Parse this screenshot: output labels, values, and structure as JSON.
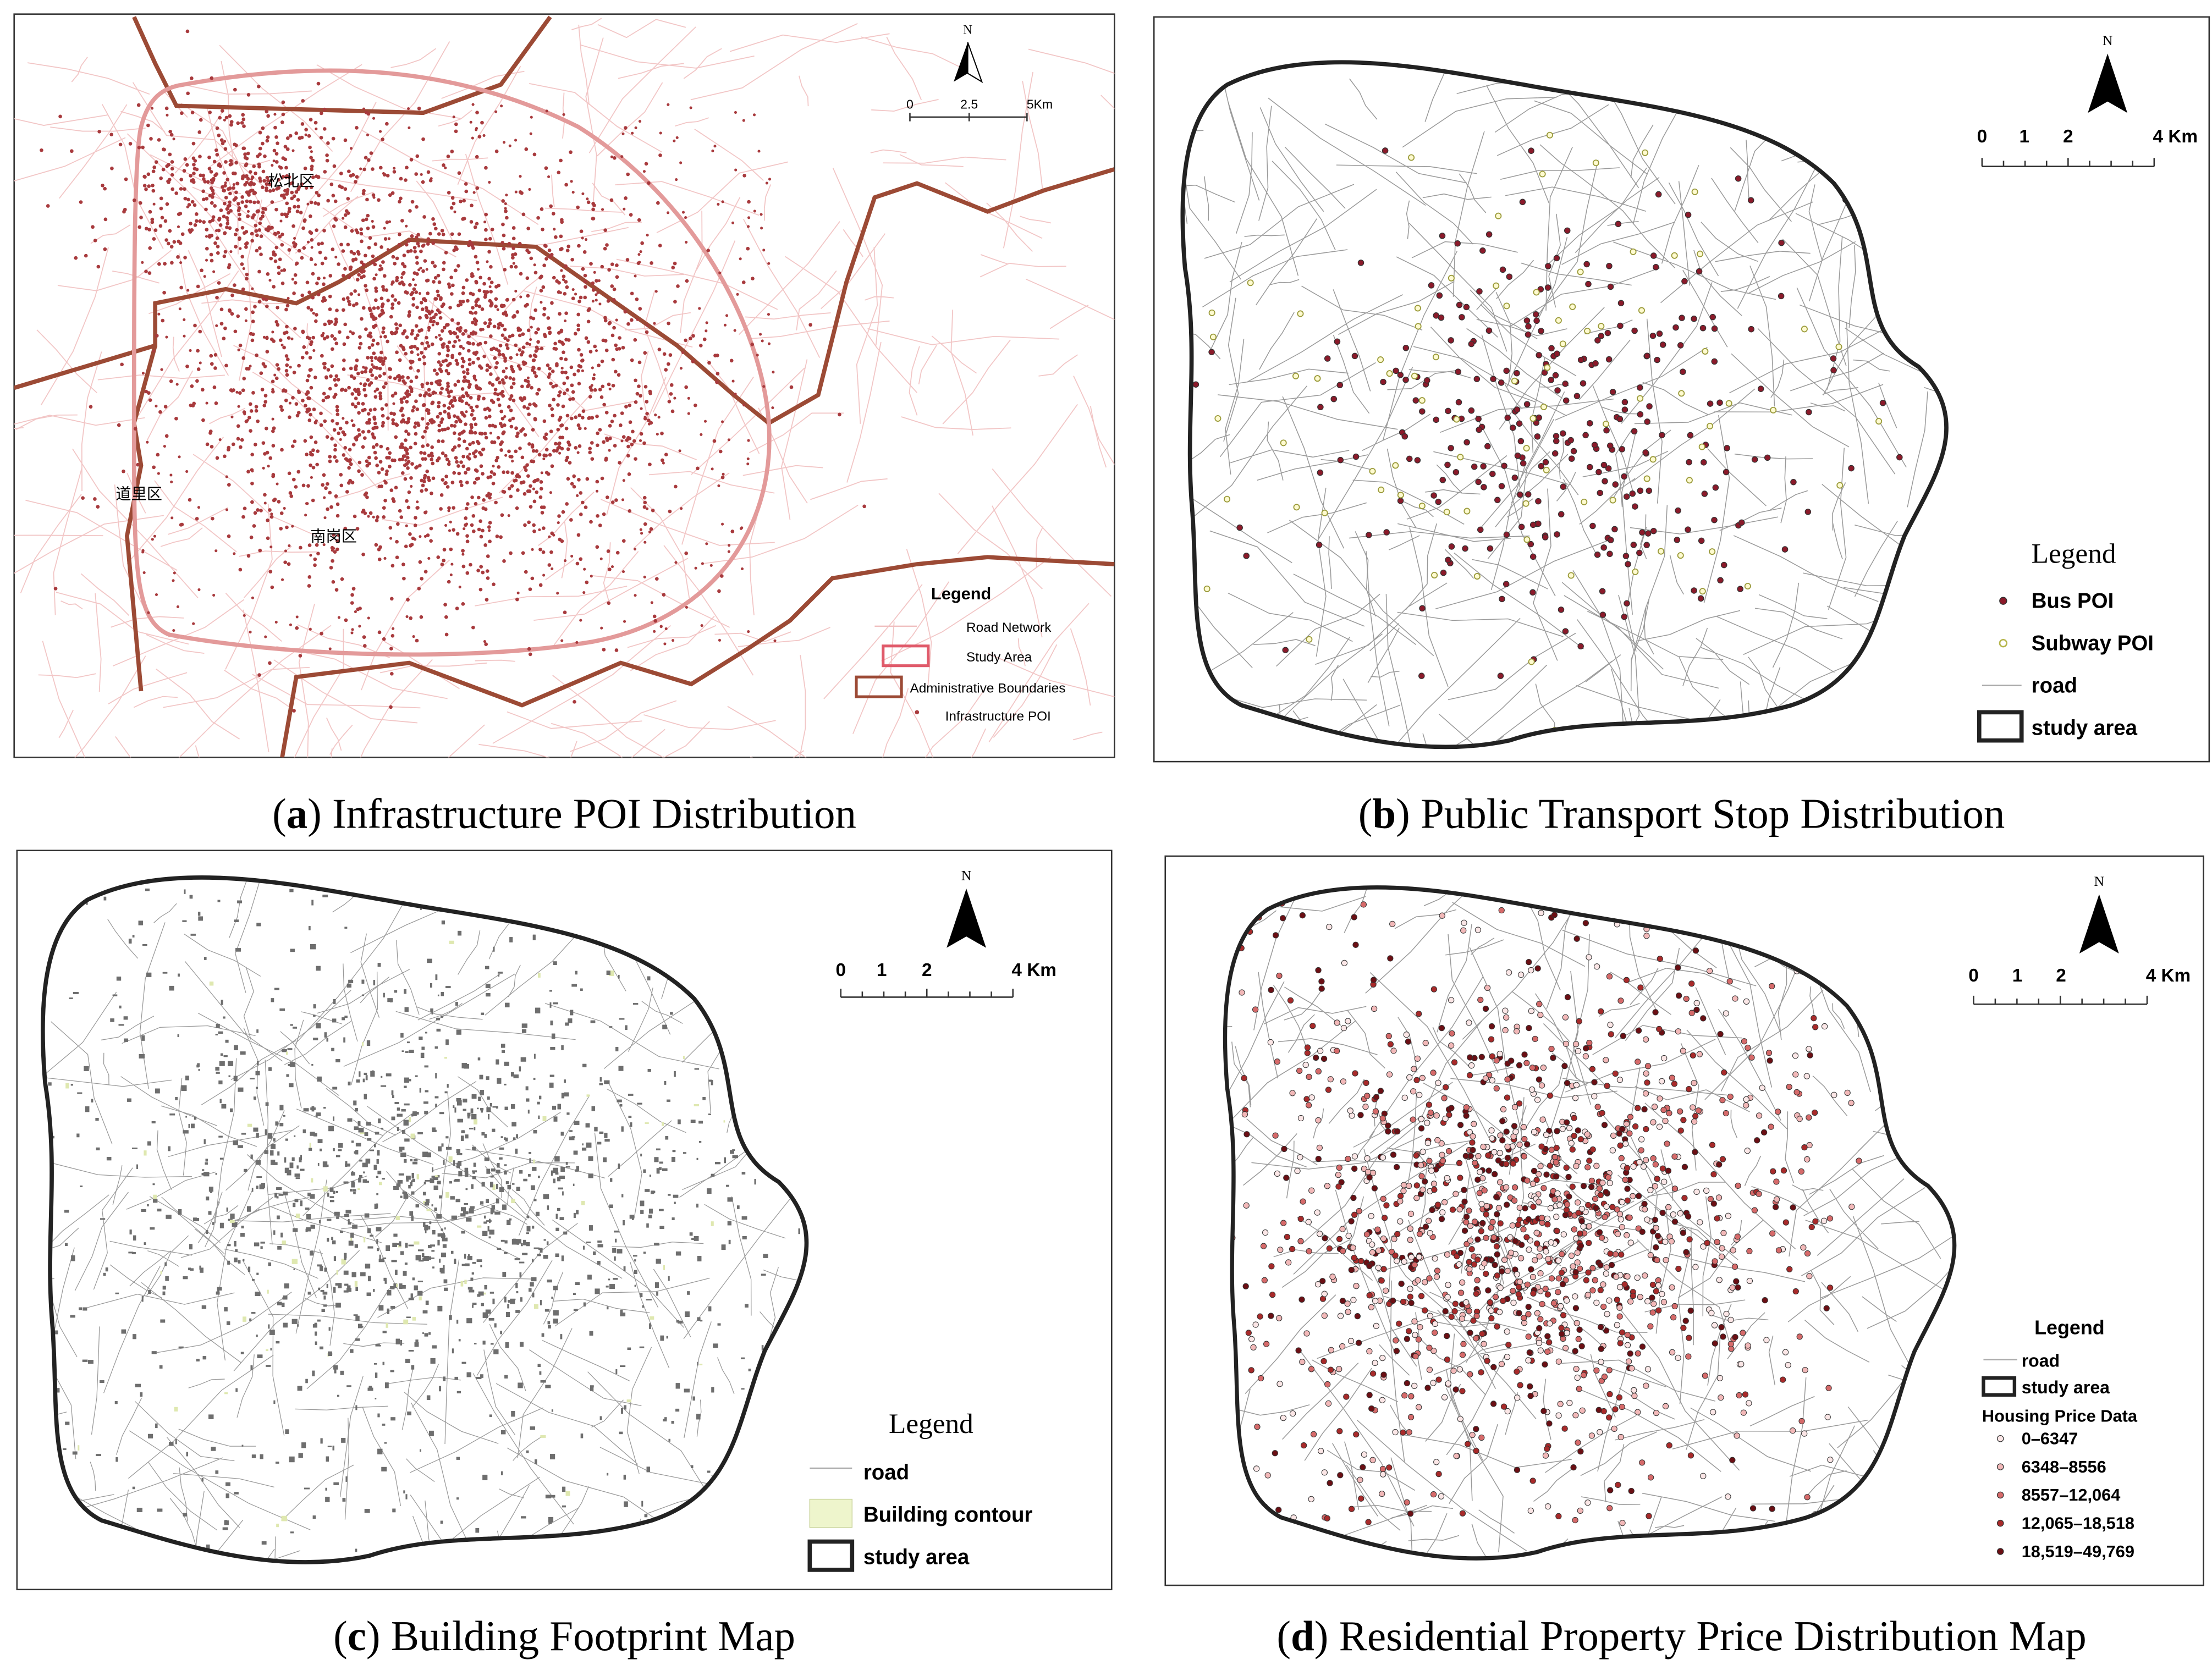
{
  "panels": [
    {
      "caption": {
        "open": "(",
        "letter": "a",
        "text": ") Infrastructure POI Distribution"
      },
      "north": "N",
      "scale_labels": [
        "0",
        "2.5",
        "5Km"
      ],
      "place_labels": [
        "松北区",
        "道里区",
        "南岗区"
      ],
      "legend": {
        "title": "Legend",
        "items": [
          "Road Network",
          "Study Area",
          "Administrative Boundaries",
          "Infrastructure POI"
        ]
      }
    },
    {
      "caption": {
        "open": "(",
        "letter": "b",
        "text": ") Public Transport Stop Distribution"
      },
      "north": "N",
      "scale_labels": [
        "0",
        "1",
        "2",
        "4 Km"
      ],
      "legend": {
        "title": "Legend",
        "items": [
          "Bus POI",
          "Subway POI",
          "road",
          "study area"
        ]
      }
    },
    {
      "caption": {
        "open": "(",
        "letter": "c",
        "text": ") Building Footprint Map"
      },
      "north": "N",
      "scale_labels": [
        "0",
        "1",
        "2",
        "4 Km"
      ],
      "legend": {
        "title": "Legend",
        "items": [
          "road",
          "Building contour",
          "study area"
        ]
      }
    },
    {
      "caption": {
        "open": "(",
        "letter": "d",
        "text": ") Residential Property Price Distribution Map"
      },
      "north": "N",
      "scale_labels": [
        "0",
        "1",
        "2",
        "4 Km"
      ],
      "legend": {
        "title": "Legend",
        "items": [
          "road",
          "study area"
        ],
        "subtitle": "Housing Price Data",
        "classes": [
          "0–6347",
          "6348–8556",
          "8557–12,064",
          "12,065–18,518",
          "18,519–49,769"
        ]
      }
    }
  ]
}
